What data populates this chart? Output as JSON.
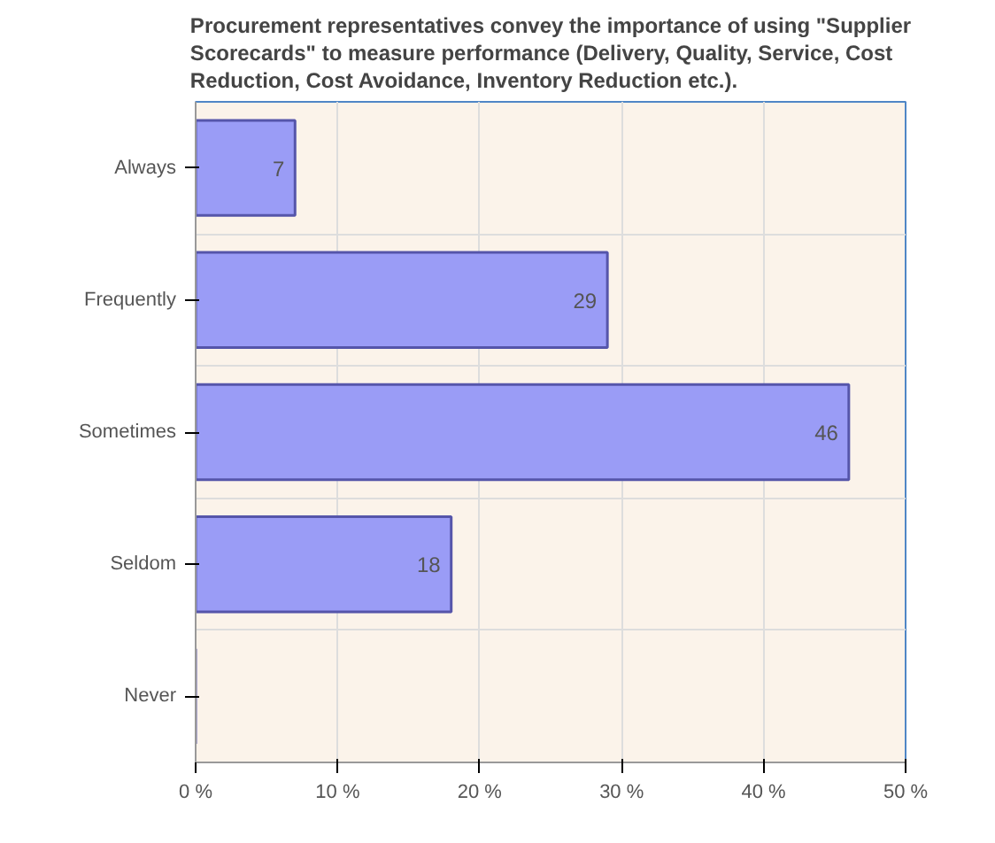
{
  "chart_data": {
    "type": "bar",
    "orientation": "horizontal",
    "title": "Procurement representatives convey the importance of using \"Supplier Scorecards\" to measure performance (Delivery, Quality, Service, Cost Reduction, Cost Avoidance, Inventory Reduction etc.).",
    "categories": [
      "Always",
      "Frequently",
      "Sometimes",
      "Seldom",
      "Never"
    ],
    "values": [
      7,
      29,
      46,
      18,
      null
    ],
    "value_labels": [
      "7",
      "29",
      "46",
      "18",
      null
    ],
    "color": "#9a9cf6",
    "xlim": [
      0,
      50
    ],
    "xticks": [
      {
        "value": 0,
        "label": "0 %"
      },
      {
        "value": 10,
        "label": "10 %"
      },
      {
        "value": 20,
        "label": "20 %"
      },
      {
        "value": 30,
        "label": "30 %"
      },
      {
        "value": 40,
        "label": "40 %"
      },
      {
        "value": 50,
        "label": "50 %"
      }
    ],
    "grid": true
  }
}
